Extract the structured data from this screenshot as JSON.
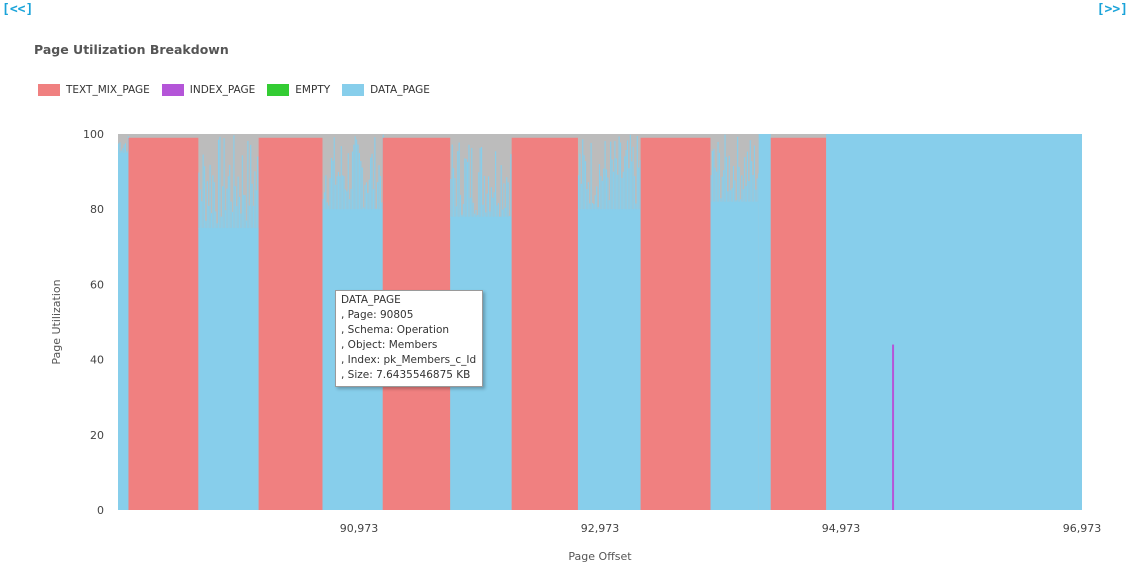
{
  "nav": {
    "prev_label": "[<<]",
    "next_label": "[>>]"
  },
  "colors": {
    "TEXT_MIX_PAGE": "#f08080",
    "INDEX_PAGE": "#b455d8",
    "EMPTY": "#33cc33",
    "DATA_PAGE": "#87ceeb",
    "unused": "#bcbcbc"
  },
  "chart_data": {
    "type": "bar",
    "title": "Page Utilization Breakdown",
    "xlabel": "Page Offset",
    "ylabel": "Page Utilization",
    "ylim": [
      0,
      100
    ],
    "xlim": [
      88973,
      96973
    ],
    "y_ticks": [
      0,
      20,
      40,
      60,
      80,
      100
    ],
    "x_ticks": [
      {
        "value": 90973,
        "label": "90,973"
      },
      {
        "value": 92973,
        "label": "92,973"
      },
      {
        "value": 94973,
        "label": "94,973"
      },
      {
        "value": 96973,
        "label": "96,973"
      }
    ],
    "legend": [
      "TEXT_MIX_PAGE",
      "INDEX_PAGE",
      "EMPTY",
      "DATA_PAGE"
    ],
    "legend_position": "top-left",
    "grid": false,
    "segments": [
      {
        "type": "DATA_PAGE",
        "start": 88973,
        "end": 89060,
        "fill": 95
      },
      {
        "type": "TEXT_MIX_PAGE",
        "start": 89060,
        "end": 89640,
        "fill": 99
      },
      {
        "type": "DATA_PAGE",
        "start": 89640,
        "end": 90140,
        "fill": 75
      },
      {
        "type": "TEXT_MIX_PAGE",
        "start": 90140,
        "end": 90670,
        "fill": 99
      },
      {
        "type": "DATA_PAGE",
        "start": 90670,
        "end": 91170,
        "fill": 80
      },
      {
        "type": "TEXT_MIX_PAGE",
        "start": 91170,
        "end": 91730,
        "fill": 99
      },
      {
        "type": "DATA_PAGE",
        "start": 91730,
        "end": 92240,
        "fill": 78
      },
      {
        "type": "TEXT_MIX_PAGE",
        "start": 92240,
        "end": 92790,
        "fill": 99
      },
      {
        "type": "DATA_PAGE",
        "start": 92790,
        "end": 93310,
        "fill": 80
      },
      {
        "type": "TEXT_MIX_PAGE",
        "start": 93310,
        "end": 93890,
        "fill": 99
      },
      {
        "type": "DATA_PAGE",
        "start": 93890,
        "end": 94290,
        "fill": 82
      },
      {
        "type": "DATA_PAGE",
        "start": 94290,
        "end": 94390,
        "fill": 100
      },
      {
        "type": "TEXT_MIX_PAGE",
        "start": 94390,
        "end": 94850,
        "fill": 99
      },
      {
        "type": "DATA_PAGE",
        "start": 94850,
        "end": 96973,
        "fill": 100
      }
    ],
    "index_spike": {
      "type": "INDEX_PAGE",
      "x": 95405,
      "value": 44
    }
  },
  "tooltip": {
    "lines": [
      "DATA_PAGE",
      ", Page: 90805",
      ", Schema: Operation",
      ", Object: Members",
      ", Index: pk_Members_c_Id",
      ", Size: 7.6435546875 KB"
    ]
  }
}
